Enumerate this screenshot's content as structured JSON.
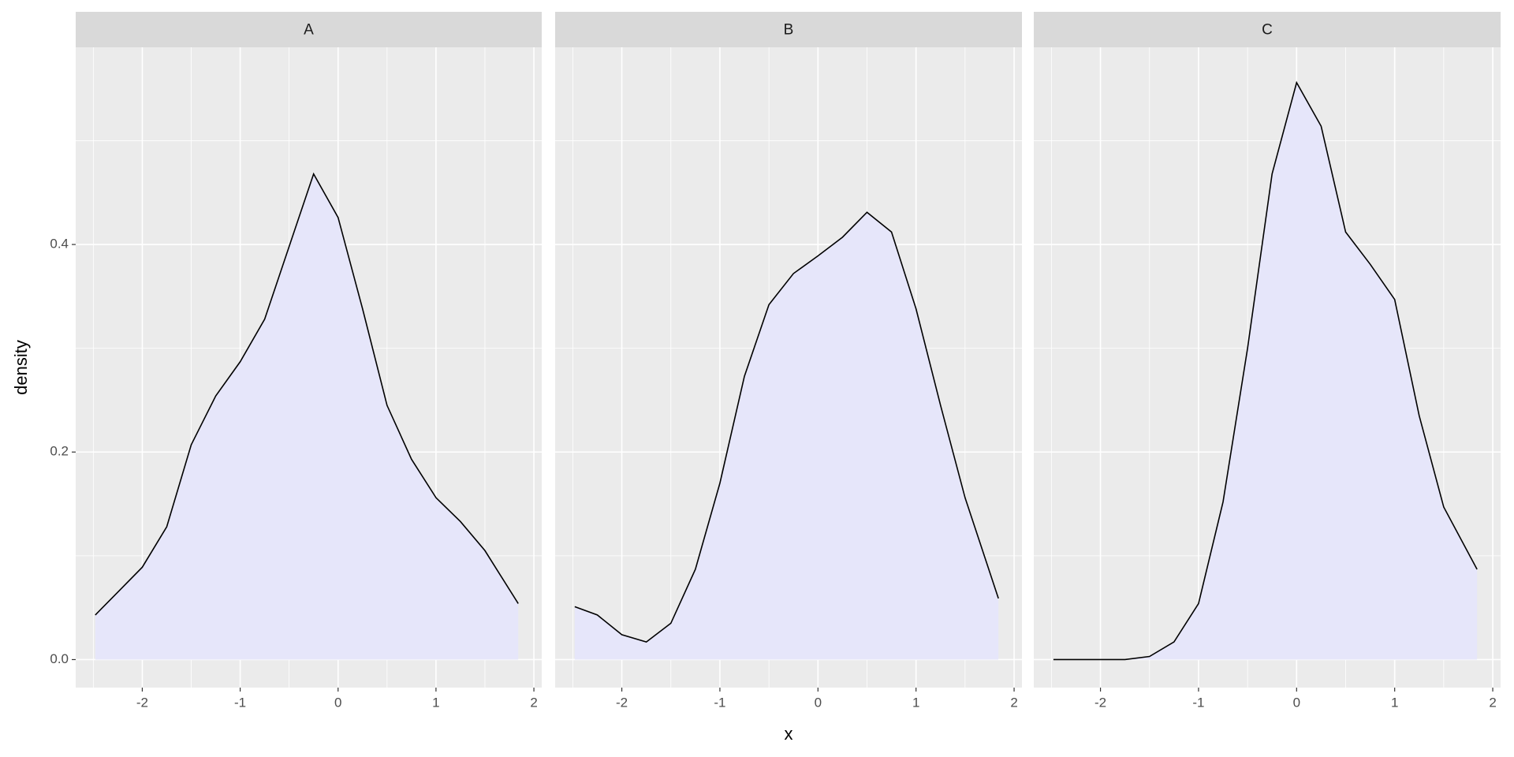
{
  "chart_data": {
    "type": "area",
    "x_label": "x",
    "y_label": "density",
    "xlim": [
      -2.68,
      2.08
    ],
    "ylim": [
      -0.027,
      0.59
    ],
    "xticks": [
      -2,
      -1,
      0,
      1,
      2
    ],
    "yticks": [
      {
        "value": 0,
        "label": "0.0"
      },
      0.2,
      0.4
    ],
    "grid": true,
    "fill": "#e6e6fa",
    "color": "#000000",
    "facets": [
      {
        "title": "A",
        "x": [
          -2.48,
          -2.25,
          -2,
          -1.75,
          -1.5,
          -1.25,
          -1,
          -0.75,
          -0.5,
          -0.25,
          0,
          0.25,
          0.5,
          0.75,
          1,
          1.25,
          1.5,
          1.84
        ],
        "values": [
          0.043,
          0.065,
          0.089,
          0.128,
          0.207,
          0.254,
          0.287,
          0.328,
          0.398,
          0.468,
          0.426,
          0.338,
          0.245,
          0.193,
          0.156,
          0.133,
          0.105,
          0.054
        ]
      },
      {
        "title": "B",
        "x": [
          -2.48,
          -2.25,
          -2,
          -1.75,
          -1.5,
          -1.25,
          -1,
          -0.75,
          -0.5,
          -0.25,
          0,
          0.25,
          0.5,
          0.75,
          1,
          1.25,
          1.5,
          1.84
        ],
        "values": [
          0.051,
          0.043,
          0.024,
          0.017,
          0.035,
          0.087,
          0.17,
          0.273,
          0.342,
          0.372,
          0.389,
          0.407,
          0.431,
          0.412,
          0.338,
          0.245,
          0.156,
          0.059
        ]
      },
      {
        "title": "C",
        "x": [
          -2.48,
          -2.25,
          -2,
          -1.75,
          -1.5,
          -1.25,
          -1,
          -0.75,
          -0.5,
          -0.25,
          0,
          0.25,
          0.5,
          0.75,
          1,
          1.25,
          1.5,
          1.84
        ],
        "values": [
          0,
          0,
          0,
          0,
          0.003,
          0.017,
          0.054,
          0.152,
          0.3,
          0.468,
          0.556,
          0.514,
          0.412,
          0.381,
          0.347,
          0.235,
          0.147,
          0.087
        ]
      }
    ]
  }
}
